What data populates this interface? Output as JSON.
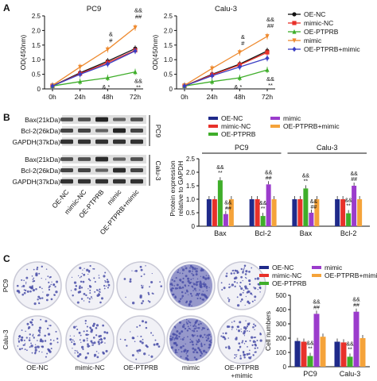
{
  "panel_labels": [
    "A",
    "B",
    "C"
  ],
  "colors": {
    "OE-NC": "#111111",
    "mimic-NC": "#e8312a",
    "OE-PTPRB": "#3fae2a",
    "mimic": "#ee8a2f",
    "OE-PTPRB+mimic": "#3b3fc4",
    "mimic_bar": "#9b3ccc",
    "OE-PTPRB+mimic_bar": "#f5a33a",
    "blot_bg": "#dedede",
    "band": "#1e1e1e",
    "dish_stain": "#4a4fa8"
  },
  "legend_a": [
    "OE-NC",
    "mimic-NC",
    "OE-PTPRB",
    "mimic",
    "OE-PTPRB+mimic"
  ],
  "legend_bar": [
    "OE-NC",
    "mimic-NC",
    "OE-PTPRB",
    "mimic",
    "OE-PTPRB+mimic"
  ],
  "blot": {
    "pc9_rows": [
      "Bax(21kDa)",
      "Bcl-2(26kDa)",
      "GAPDH(37kDa)"
    ],
    "calu_rows": [
      "Bax(21kDa)",
      "Bcl-2(26kDa)",
      "GAPDH(37kDa)"
    ],
    "pc9_side": "PC9",
    "calu_side": "Calu-3",
    "lanes": [
      "OE-NC",
      "mimic-NC",
      "OE-PTPRB",
      "mimic",
      "OE-PTPRB+mimic"
    ]
  },
  "colony": {
    "row_labels": [
      "PC9",
      "Calu-3"
    ],
    "col_labels": [
      "OE-NC",
      "mimic-NC",
      "OE-PTPRB",
      "mimic",
      "OE-PTPRB\n+mimic"
    ],
    "density": [
      [
        0.45,
        0.45,
        0.2,
        0.85,
        0.55
      ],
      [
        0.5,
        0.5,
        0.22,
        0.9,
        0.55
      ]
    ]
  },
  "chart_data": [
    {
      "type": "line",
      "title": "PC9",
      "xlabel": "",
      "ylabel": "OD(450nm)",
      "x": [
        "0h",
        "24h",
        "48h",
        "72h"
      ],
      "ylim": [
        0,
        2.5
      ],
      "yticks": [
        "0",
        "0.5",
        "1.0",
        "1.5",
        "2.0",
        "2.5"
      ],
      "series": [
        {
          "name": "OE-NC",
          "values": [
            0.1,
            0.55,
            0.95,
            1.38
          ]
        },
        {
          "name": "mimic-NC",
          "values": [
            0.1,
            0.52,
            0.9,
            1.32
          ]
        },
        {
          "name": "OE-PTPRB",
          "values": [
            0.1,
            0.25,
            0.38,
            0.58
          ]
        },
        {
          "name": "mimic",
          "values": [
            0.12,
            0.75,
            1.35,
            2.1
          ]
        },
        {
          "name": "OE-PTPRB+mimic",
          "values": [
            0.1,
            0.5,
            0.85,
            1.3
          ]
        }
      ],
      "annotations": [
        "&&",
        "##",
        "&",
        "#",
        "&",
        "*",
        "&&",
        "**"
      ]
    },
    {
      "type": "line",
      "title": "Calu-3",
      "xlabel": "",
      "ylabel": "OD(450nm)",
      "x": [
        "0h",
        "24h",
        "48h",
        "72h"
      ],
      "ylim": [
        0,
        2.5
      ],
      "yticks": [
        "0",
        "0.5",
        "1.0",
        "1.5",
        "2.0",
        "2.5"
      ],
      "series": [
        {
          "name": "OE-NC",
          "values": [
            0.1,
            0.5,
            0.85,
            1.3
          ]
        },
        {
          "name": "mimic-NC",
          "values": [
            0.1,
            0.48,
            0.82,
            1.25
          ]
        },
        {
          "name": "OE-PTPRB",
          "values": [
            0.1,
            0.25,
            0.38,
            0.65
          ]
        },
        {
          "name": "mimic",
          "values": [
            0.12,
            0.7,
            1.25,
            1.8
          ]
        },
        {
          "name": "OE-PTPRB+mimic",
          "values": [
            0.1,
            0.45,
            0.75,
            1.05
          ]
        }
      ],
      "annotations": [
        "&&",
        "##",
        "&",
        "#",
        "&",
        "*",
        "&&",
        "**"
      ]
    },
    {
      "type": "bar",
      "title": "",
      "ylabel": "Protein expression\nrelative to GAPDH",
      "ylim": [
        0,
        2.5
      ],
      "yticks": [
        "0",
        "0.5",
        "1.0",
        "1.5",
        "2.0",
        "2.5"
      ],
      "groups": [
        "PC9",
        "Calu-3"
      ],
      "categories": [
        "Bax",
        "Bcl-2",
        "Bax",
        "Bcl-2"
      ],
      "series": [
        {
          "name": "OE-NC",
          "values": [
            1.0,
            1.0,
            1.0,
            1.0
          ]
        },
        {
          "name": "mimic-NC",
          "values": [
            1.0,
            1.0,
            1.0,
            1.0
          ]
        },
        {
          "name": "OE-PTPRB",
          "values": [
            1.7,
            0.38,
            1.4,
            0.48
          ]
        },
        {
          "name": "mimic",
          "values": [
            0.45,
            1.55,
            0.5,
            1.5
          ]
        },
        {
          "name": "OE-PTPRB+mimic",
          "values": [
            1.0,
            1.0,
            1.0,
            1.0
          ]
        }
      ],
      "annotations": [
        [
          "&&",
          "**"
        ],
        [
          "&&",
          "##"
        ],
        [
          "&&",
          "**"
        ],
        [
          "&&",
          "##"
        ],
        [
          "&&",
          "**"
        ],
        [
          "&&",
          "##"
        ],
        [
          "&&",
          "**"
        ],
        [
          "&&",
          "##"
        ]
      ]
    },
    {
      "type": "bar",
      "title": "",
      "ylabel": "Cell numbers",
      "ylim": [
        0,
        500
      ],
      "yticks": [
        "0",
        "100",
        "200",
        "300",
        "400",
        "500"
      ],
      "categories": [
        "PC9",
        "Calu-3"
      ],
      "series": [
        {
          "name": "OE-NC",
          "values": [
            180,
            175
          ]
        },
        {
          "name": "mimic-NC",
          "values": [
            175,
            170
          ]
        },
        {
          "name": "OE-PTPRB",
          "values": [
            75,
            70
          ]
        },
        {
          "name": "mimic",
          "values": [
            370,
            385
          ]
        },
        {
          "name": "OE-PTPRB+mimic",
          "values": [
            210,
            200
          ]
        }
      ],
      "annotations": [
        [
          "&&",
          "**"
        ],
        [
          "&&",
          "##"
        ],
        [
          "&&",
          "**"
        ],
        [
          "&&",
          "##"
        ]
      ]
    }
  ]
}
